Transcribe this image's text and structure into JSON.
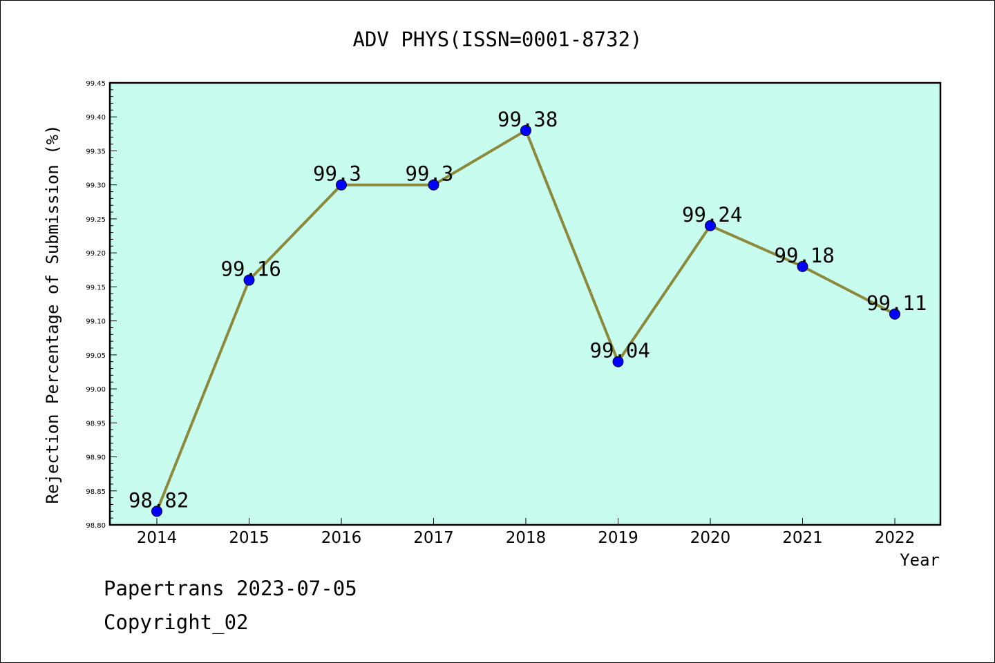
{
  "chart_data": {
    "type": "line",
    "title": "ADV PHYS(ISSN=0001-8732)",
    "xlabel": "Year",
    "ylabel": "Rejection Percentage of Submission (%)",
    "categories": [
      "2014",
      "2015",
      "2016",
      "2017",
      "2018",
      "2019",
      "2020",
      "2021",
      "2022"
    ],
    "values": [
      98.82,
      99.16,
      99.3,
      99.3,
      99.38,
      99.04,
      99.24,
      99.18,
      99.11
    ],
    "point_labels": [
      "98.82",
      "99.16",
      "99.3",
      "99.3",
      "99.38",
      "99.04",
      "99.24",
      "99.18",
      "99.11"
    ],
    "ylim": [
      98.8,
      99.45
    ],
    "yticks": [
      "98.80",
      "98.85",
      "98.90",
      "98.95",
      "99.00",
      "99.05",
      "99.10",
      "99.15",
      "99.20",
      "99.25",
      "99.30",
      "99.35",
      "99.40",
      "99.45"
    ],
    "grid": false,
    "colors": {
      "plot_background": "#c8fcee",
      "line": "#8b8a3c",
      "marker": "#0000ff"
    }
  },
  "footer": {
    "line1": "Papertrans 2023-07-05",
    "line2": "Copyright_02"
  }
}
